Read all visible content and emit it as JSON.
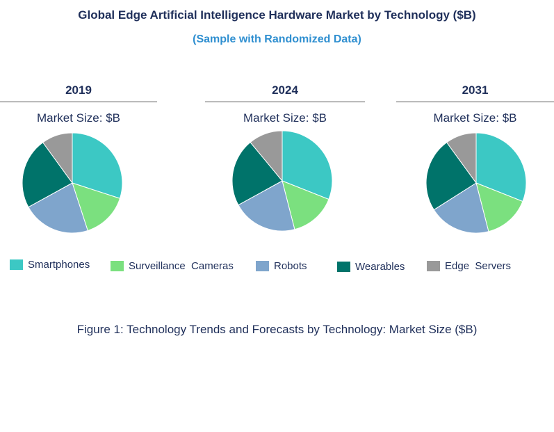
{
  "title": "Global Edge Artificial Intelligence Hardware Market by Technology ($B)",
  "subtitle": "(Sample with Randomized Data)",
  "caption": "Figure 1: Technology Trends and Forecasts by Technology: Market Size ($B)",
  "colors": {
    "Smartphones": "#3cc8c4",
    "Surveillance Cameras": "#7be07f",
    "Robots": "#7fa5cc",
    "Wearables": "#00736a",
    "Edge Servers": "#999999"
  },
  "legend": [
    {
      "label": "Smartphones",
      "series": "Smartphones"
    },
    {
      "label": "Surveillance  Cameras",
      "series": "Surveillance Cameras"
    },
    {
      "label": "Robots",
      "series": "Robots"
    },
    {
      "label": "Wearables",
      "series": "Wearables"
    },
    {
      "label": "Edge  Servers",
      "series": "Edge Servers"
    }
  ],
  "chart_data": [
    {
      "type": "pie",
      "title": "2019",
      "subtitle": "Market Size: $B",
      "labels": [
        "Smartphones",
        "Surveillance Cameras",
        "Robots",
        "Wearables",
        "Edge Servers"
      ],
      "values": [
        30,
        15,
        22,
        23,
        10
      ]
    },
    {
      "type": "pie",
      "title": "2024",
      "subtitle": "Market Size: $B",
      "labels": [
        "Smartphones",
        "Surveillance Cameras",
        "Robots",
        "Wearables",
        "Edge Servers"
      ],
      "values": [
        31,
        15,
        21,
        22,
        11
      ]
    },
    {
      "type": "pie",
      "title": "2031",
      "subtitle": "Market Size: $B",
      "labels": [
        "Smartphones",
        "Surveillance Cameras",
        "Robots",
        "Wearables",
        "Edge Servers"
      ],
      "values": [
        31,
        15,
        20,
        24,
        10
      ]
    }
  ]
}
